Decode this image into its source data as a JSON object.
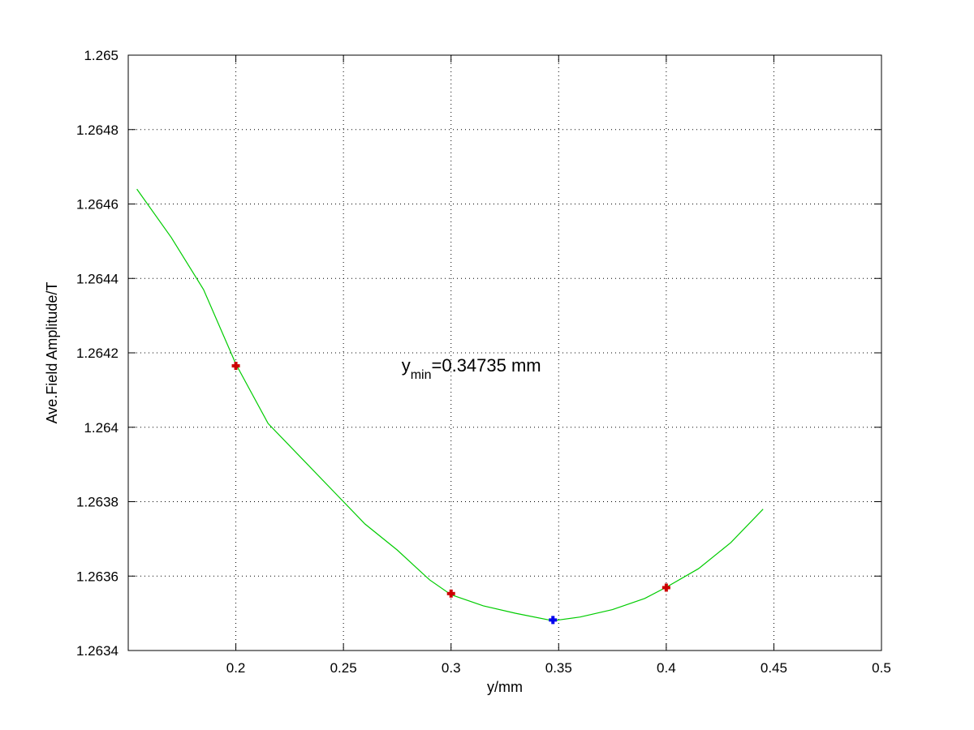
{
  "chart_data": {
    "type": "line",
    "title": "",
    "xlabel": "y/mm",
    "ylabel": "Ave.Field Amplitude/T",
    "xlim": [
      0.15,
      0.5
    ],
    "ylim": [
      1.2634,
      1.265
    ],
    "x_ticks": [
      0.2,
      0.25,
      0.3,
      0.35,
      0.4,
      0.45,
      0.5
    ],
    "x_tick_labels": [
      "0.2",
      "0.25",
      "0.3",
      "0.35",
      "0.4",
      "0.45",
      "0.5"
    ],
    "y_ticks": [
      1.2634,
      1.2636,
      1.2638,
      1.264,
      1.2642,
      1.2644,
      1.2646,
      1.2648,
      1.265
    ],
    "y_tick_labels": [
      "1.2634",
      "1.2636",
      "1.2638",
      "1.264",
      "1.2642",
      "1.2644",
      "1.2646",
      "1.2648",
      "1.265"
    ],
    "grid": true,
    "series": [
      {
        "kind": "fit-curve",
        "color": "#00cc00",
        "x": [
          0.154,
          0.17,
          0.185,
          0.2,
          0.215,
          0.23,
          0.245,
          0.26,
          0.275,
          0.29,
          0.3,
          0.315,
          0.33,
          0.34735,
          0.36,
          0.375,
          0.39,
          0.4,
          0.415,
          0.43,
          0.445
        ],
        "y": [
          1.26464,
          1.26451,
          1.26437,
          1.26417,
          1.26401,
          1.26392,
          1.26383,
          1.26374,
          1.26367,
          1.26359,
          1.26355,
          1.26352,
          1.2635,
          1.26348,
          1.26349,
          1.26351,
          1.26354,
          1.26357,
          1.26362,
          1.26369,
          1.26378
        ]
      },
      {
        "kind": "data-points",
        "color": "#cc0000",
        "marker": "plus",
        "x": [
          0.2,
          0.3,
          0.4
        ],
        "y": [
          1.264165,
          1.263553,
          1.263569
        ]
      },
      {
        "kind": "minimum-point",
        "color": "#0000ee",
        "marker": "plus",
        "x": [
          0.34735
        ],
        "y": [
          1.263482
        ]
      }
    ],
    "annotation": {
      "main": "y",
      "subscript": "min",
      "value": "=0.34735 mm",
      "x": 0.277,
      "y": 1.26415
    }
  }
}
